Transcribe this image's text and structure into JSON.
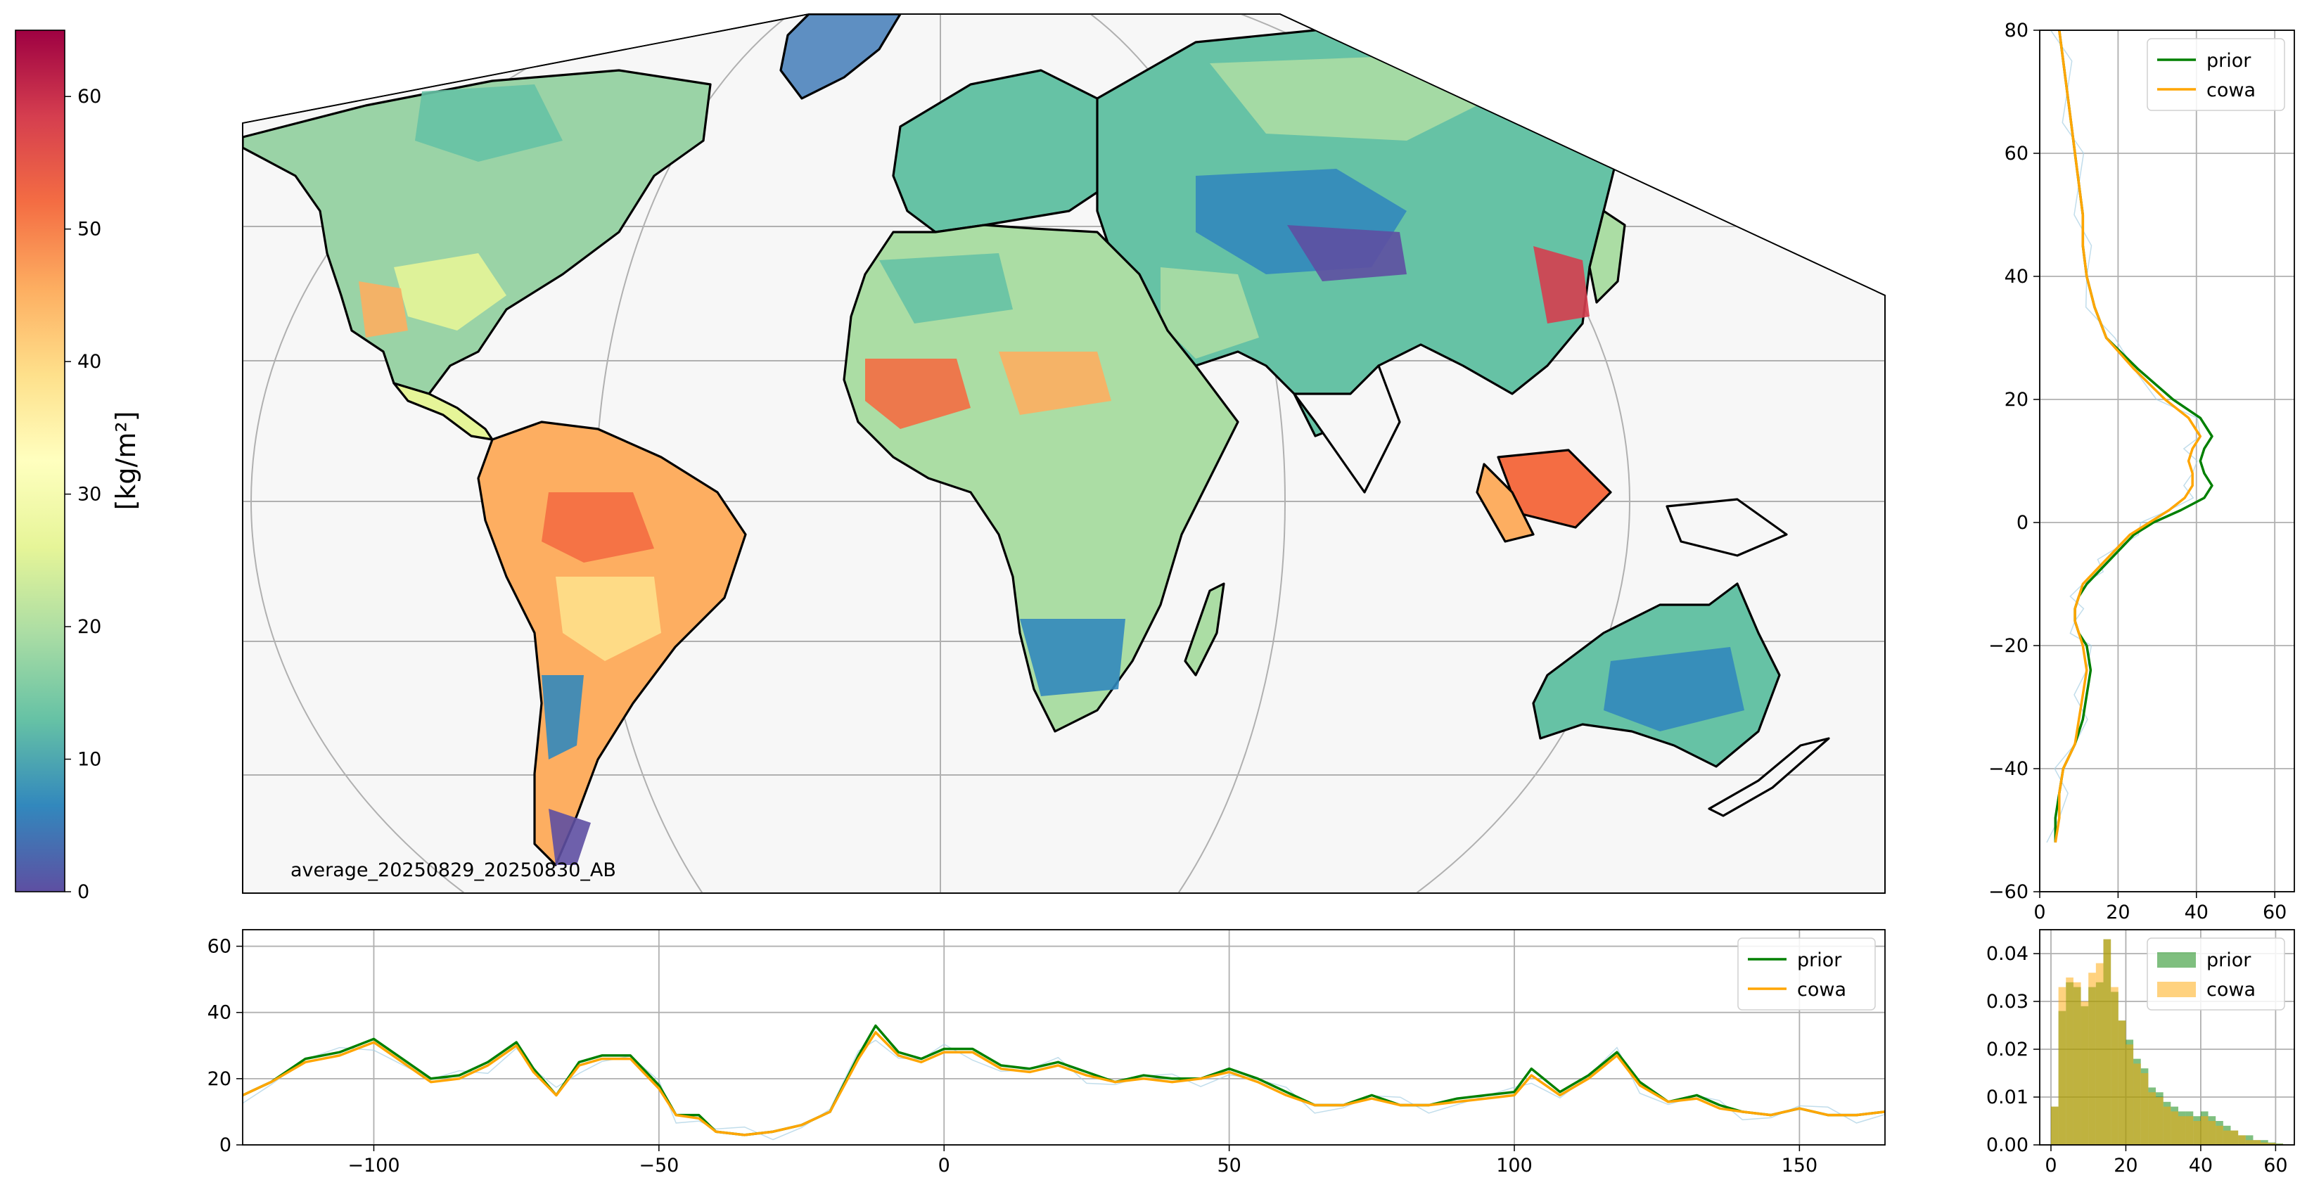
{
  "colorbar": {
    "label": "[kg/m²]",
    "range": [
      0,
      65
    ],
    "ticks": [
      0,
      10,
      20,
      30,
      40,
      50,
      60
    ],
    "colors": [
      "#5e4fa2",
      "#3288bd",
      "#66c2a5",
      "#abdda4",
      "#e6f598",
      "#ffffbf",
      "#fee08b",
      "#fdae61",
      "#f46d43",
      "#d53e4f",
      "#9e0142"
    ]
  },
  "map": {
    "annotation": "average_20250829_20250830_AB",
    "ocean_color": "#f7f7f7",
    "coast_color": "#000000",
    "grid_color": "#b0b0b0"
  },
  "chart_data": [
    {
      "type": "line",
      "panel": "latitude-profile",
      "title": "",
      "xlabel": "",
      "ylabel": "",
      "xlim": [
        0,
        65
      ],
      "ylim": [
        -60,
        80
      ],
      "xticks": [
        0,
        20,
        40,
        60
      ],
      "yticks": [
        -60,
        -40,
        -20,
        0,
        20,
        40,
        60,
        80
      ],
      "grid": true,
      "legend": "top-right",
      "series": [
        {
          "name": "prior",
          "color": "#008000",
          "x": [
            4,
            4,
            5,
            6,
            9,
            11,
            12,
            13,
            12,
            10,
            9,
            9,
            10,
            12,
            15,
            18,
            21,
            24,
            29,
            36,
            42,
            44,
            42,
            41,
            42,
            44,
            41,
            34,
            25,
            17,
            14,
            12,
            11,
            11,
            10,
            9,
            8,
            7,
            6,
            5
          ],
          "y": [
            -52,
            -48,
            -44,
            -40,
            -36,
            -32,
            -28,
            -24,
            -20,
            -18,
            -16,
            -14,
            -12,
            -10,
            -8,
            -6,
            -4,
            -2,
            0,
            2,
            4,
            6,
            8,
            10,
            12,
            14,
            17,
            20,
            25,
            30,
            35,
            40,
            45,
            50,
            55,
            60,
            65,
            70,
            75,
            80
          ]
        },
        {
          "name": "cowa",
          "color": "#ffa500",
          "x": [
            4,
            5,
            5,
            6,
            9,
            10,
            11,
            12,
            11,
            10,
            9,
            9,
            10,
            11,
            14,
            17,
            20,
            23,
            28,
            33,
            37,
            39,
            39,
            38,
            39,
            41,
            38,
            32,
            24,
            17,
            14,
            12,
            11,
            11,
            10,
            9,
            8,
            7,
            6,
            5
          ],
          "y": [
            -52,
            -48,
            -44,
            -40,
            -36,
            -32,
            -28,
            -24,
            -20,
            -18,
            -16,
            -14,
            -12,
            -10,
            -8,
            -6,
            -4,
            -2,
            0,
            2,
            4,
            6,
            8,
            10,
            12,
            14,
            17,
            20,
            25,
            30,
            35,
            40,
            45,
            50,
            55,
            60,
            65,
            70,
            75,
            80
          ]
        }
      ]
    },
    {
      "type": "line",
      "panel": "longitude-profile",
      "title": "",
      "xlabel": "",
      "ylabel": "",
      "xlim": [
        -123,
        165
      ],
      "ylim": [
        0,
        65
      ],
      "xticks": [
        -100,
        -50,
        0,
        50,
        100,
        150
      ],
      "yticks": [
        0,
        20,
        40,
        60
      ],
      "grid": true,
      "legend": "top-right",
      "series": [
        {
          "name": "prior",
          "color": "#008000",
          "x": [
            -123,
            -118,
            -112,
            -106,
            -100,
            -95,
            -90,
            -85,
            -80,
            -75,
            -72,
            -68,
            -64,
            -60,
            -55,
            -50,
            -47,
            -43,
            -40,
            -35,
            -30,
            -25,
            -20,
            -15,
            -12,
            -8,
            -4,
            0,
            5,
            10,
            15,
            20,
            25,
            30,
            35,
            40,
            45,
            50,
            55,
            60,
            65,
            70,
            75,
            80,
            85,
            90,
            95,
            100,
            103,
            108,
            113,
            118,
            122,
            127,
            132,
            136,
            140,
            145,
            150,
            155,
            160,
            165
          ],
          "y": [
            15,
            19,
            26,
            28,
            32,
            26,
            20,
            21,
            25,
            31,
            23,
            15,
            25,
            27,
            27,
            18,
            9,
            9,
            4,
            3,
            4,
            6,
            10,
            27,
            36,
            28,
            26,
            29,
            29,
            24,
            23,
            25,
            22,
            19,
            21,
            20,
            20,
            23,
            20,
            16,
            12,
            12,
            15,
            12,
            12,
            14,
            15,
            16,
            23,
            16,
            21,
            28,
            19,
            13,
            15,
            12,
            10,
            9,
            11,
            9,
            9,
            10
          ]
        },
        {
          "name": "cowa",
          "color": "#ffa500",
          "x": [
            -123,
            -118,
            -112,
            -106,
            -100,
            -95,
            -90,
            -85,
            -80,
            -75,
            -72,
            -68,
            -64,
            -60,
            -55,
            -50,
            -47,
            -43,
            -40,
            -35,
            -30,
            -25,
            -20,
            -15,
            -12,
            -8,
            -4,
            0,
            5,
            10,
            15,
            20,
            25,
            30,
            35,
            40,
            45,
            50,
            55,
            60,
            65,
            70,
            75,
            80,
            85,
            90,
            95,
            100,
            103,
            108,
            113,
            118,
            122,
            127,
            132,
            136,
            140,
            145,
            150,
            155,
            160,
            165
          ],
          "y": [
            15,
            19,
            25,
            27,
            31,
            25,
            19,
            20,
            24,
            30,
            22,
            15,
            24,
            26,
            26,
            17,
            9,
            8,
            4,
            3,
            4,
            6,
            10,
            26,
            34,
            27,
            25,
            28,
            28,
            23,
            22,
            24,
            21,
            19,
            20,
            19,
            20,
            22,
            19,
            15,
            12,
            12,
            14,
            12,
            12,
            13,
            14,
            15,
            21,
            15,
            20,
            27,
            18,
            13,
            14,
            11,
            10,
            9,
            11,
            9,
            9,
            10
          ]
        }
      ]
    },
    {
      "type": "bar",
      "panel": "histogram",
      "title": "",
      "xlabel": "",
      "ylabel": "",
      "xlim": [
        -3,
        65
      ],
      "ylim": [
        0,
        0.045
      ],
      "xticks": [
        0,
        20,
        40,
        60
      ],
      "yticks": [
        0.0,
        0.01,
        0.02,
        0.03,
        0.04
      ],
      "ytick_labels": [
        "0.00",
        "0.01",
        "0.02",
        "0.03",
        "0.04"
      ],
      "grid": true,
      "legend": "top-right",
      "bin_edges": [
        0,
        2,
        4,
        6,
        8,
        10,
        12,
        14,
        16,
        18,
        20,
        22,
        24,
        26,
        28,
        30,
        32,
        34,
        36,
        38,
        40,
        42,
        44,
        46,
        48,
        50,
        52,
        54,
        56,
        58,
        60,
        62
      ],
      "series": [
        {
          "name": "prior",
          "color": "#008000",
          "opacity": 0.5,
          "values": [
            0.008,
            0.028,
            0.034,
            0.033,
            0.029,
            0.033,
            0.034,
            0.043,
            0.032,
            0.026,
            0.022,
            0.018,
            0.016,
            0.012,
            0.011,
            0.009,
            0.008,
            0.007,
            0.007,
            0.006,
            0.007,
            0.006,
            0.005,
            0.004,
            0.003,
            0.002,
            0.002,
            0.001,
            0.001,
            0.0005,
            0.0003
          ]
        },
        {
          "name": "cowa",
          "color": "#ffa500",
          "opacity": 0.5,
          "values": [
            0.008,
            0.033,
            0.035,
            0.034,
            0.03,
            0.036,
            0.038,
            0.043,
            0.033,
            0.026,
            0.021,
            0.017,
            0.015,
            0.011,
            0.01,
            0.008,
            0.007,
            0.006,
            0.006,
            0.005,
            0.006,
            0.005,
            0.004,
            0.003,
            0.003,
            0.002,
            0.001,
            0.001,
            0.0005,
            0.0004,
            0.0002
          ]
        }
      ]
    }
  ]
}
